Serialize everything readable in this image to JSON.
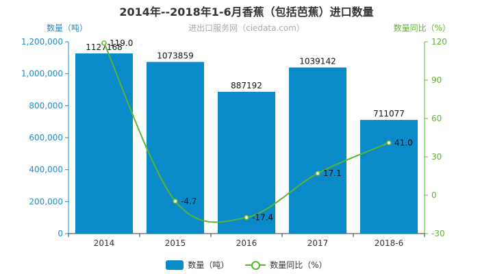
{
  "title": "2014年--2018年1-6月香蕉（包括芭蕉）进口数量",
  "subtitle": "进出口服务网（ciedata.com）",
  "legend": {
    "bar_label": "数量（吨）",
    "line_label": "数量同比（%）"
  },
  "colors": {
    "bar": "#0b8ac9",
    "line": "#5bb431",
    "left_axis": "#1a8dc9",
    "right_axis": "#5bb431"
  },
  "chart_data": {
    "type": "bar",
    "title": "2014年--2018年1-6月香蕉（包括芭蕉）进口数量",
    "categories": [
      "2014",
      "2015",
      "2016",
      "2017",
      "2018-6"
    ],
    "series": [
      {
        "name": "数量（吨）",
        "type": "bar",
        "axis": "left",
        "values": [
          1127168,
          1073859,
          887192,
          1039142,
          711077
        ]
      },
      {
        "name": "数量同比（%）",
        "type": "line",
        "axis": "right",
        "values": [
          119.0,
          -4.7,
          -17.4,
          17.1,
          41.0
        ]
      }
    ],
    "ylabel": "数量（吨）",
    "ylabel_right": "数量同比（%）",
    "ylim": [
      0,
      1200000
    ],
    "ylim_right": [
      -30,
      120
    ],
    "yticks": [
      "0",
      "200,000",
      "400,000",
      "600,000",
      "800,000",
      "1,000,000",
      "1,200,000"
    ],
    "yticks_right": [
      "-30",
      "0",
      "30",
      "60",
      "90",
      "120"
    ],
    "grid": false,
    "legend_position": "bottom"
  }
}
